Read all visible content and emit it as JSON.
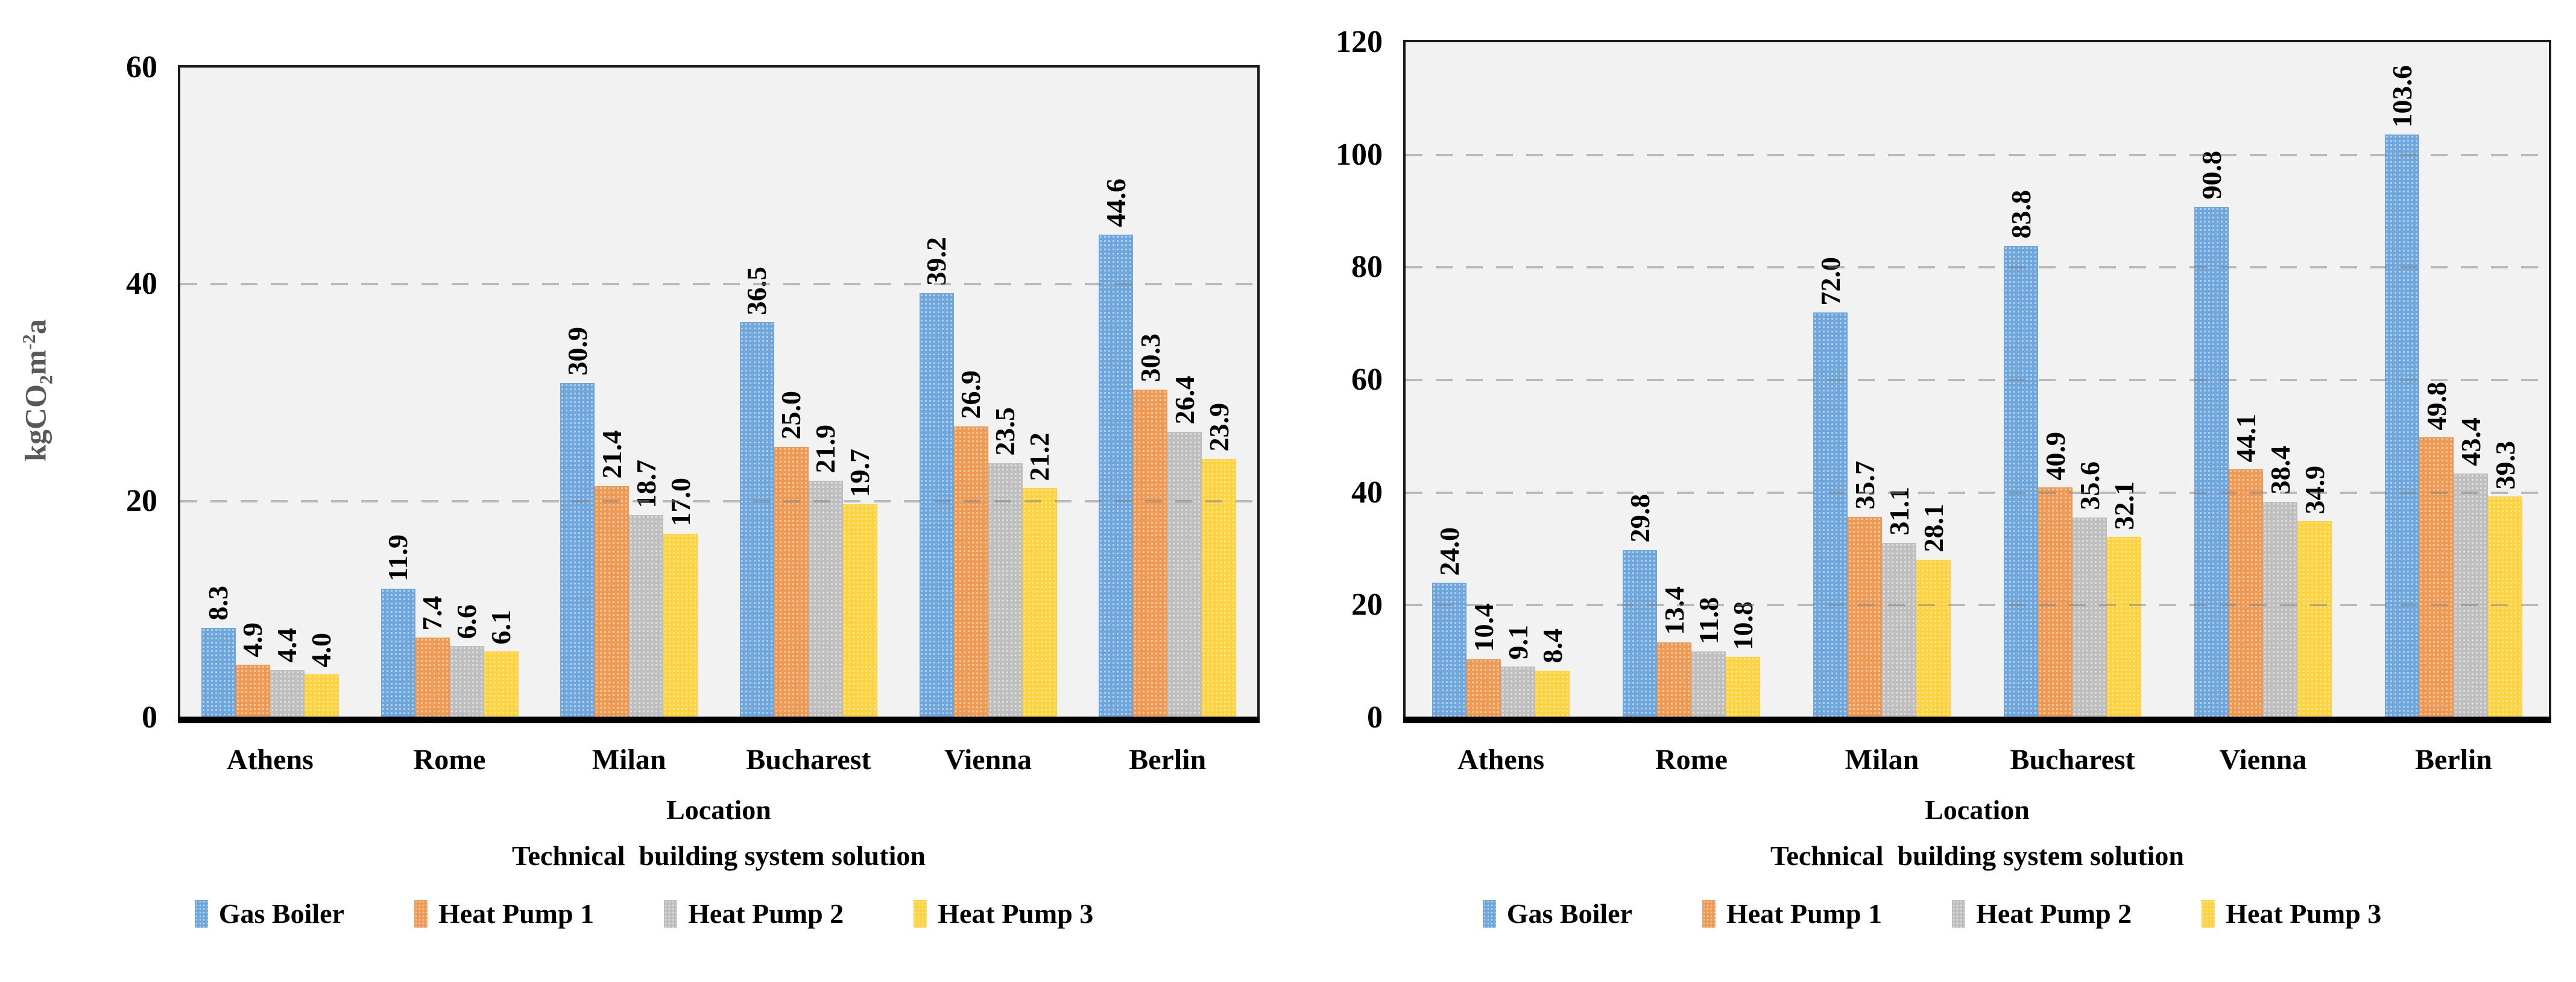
{
  "figure": {
    "background": "#FFFFFF",
    "plot_background": "#F2F2F2",
    "grid_color": "#BFBFBF",
    "axis_color": "#000000",
    "y_axis_title_color": "#595959"
  },
  "chart_data": [
    {
      "type": "bar",
      "panel": "left",
      "title": "",
      "ylabel_parts": {
        "pre": "kgCO",
        "sub": "2",
        "mid": "m",
        "sup": "-2",
        "post": "a"
      },
      "xlabel_line1": "Location",
      "xlabel_line2": "Technical  building system solution",
      "categories": [
        "Athens",
        "Rome",
        "Milan",
        "Bucharest",
        "Vienna",
        "Berlin"
      ],
      "ylim": [
        0,
        60
      ],
      "yticks": [
        0,
        20,
        40,
        60
      ],
      "grid": true,
      "legend_position": "bottom",
      "series": [
        {
          "name": "Gas Boiler",
          "color": "#6FA7DC",
          "values": [
            8.3,
            11.9,
            30.9,
            36.5,
            39.2,
            44.6
          ]
        },
        {
          "name": "Heat Pump 1",
          "color": "#EE9A54",
          "values": [
            4.9,
            7.4,
            21.4,
            25.0,
            26.9,
            30.3
          ]
        },
        {
          "name": "Heat Pump 2",
          "color": "#BFBFBF",
          "values": [
            4.4,
            6.6,
            18.7,
            21.9,
            23.5,
            26.4
          ]
        },
        {
          "name": "Heat Pump 3",
          "color": "#FFD23F",
          "values": [
            4.0,
            6.1,
            17.0,
            19.7,
            21.2,
            23.9
          ]
        }
      ]
    },
    {
      "type": "bar",
      "panel": "right",
      "title": "",
      "xlabel_line1": "Location",
      "xlabel_line2": "Technical  building system solution",
      "categories": [
        "Athens",
        "Rome",
        "Milan",
        "Bucharest",
        "Vienna",
        "Berlin"
      ],
      "ylim": [
        0,
        120
      ],
      "yticks": [
        0,
        20,
        40,
        60,
        80,
        100,
        120
      ],
      "grid": true,
      "legend_position": "bottom",
      "series": [
        {
          "name": "Gas Boiler",
          "color": "#6FA7DC",
          "values": [
            24.0,
            29.8,
            72.0,
            83.8,
            90.8,
            103.6
          ]
        },
        {
          "name": "Heat Pump 1",
          "color": "#EE9A54",
          "values": [
            10.4,
            13.4,
            35.7,
            40.9,
            44.1,
            49.8
          ]
        },
        {
          "name": "Heat Pump 2",
          "color": "#BFBFBF",
          "values": [
            9.1,
            11.8,
            31.1,
            35.6,
            38.4,
            43.4
          ]
        },
        {
          "name": "Heat Pump 3",
          "color": "#FFD23F",
          "values": [
            8.4,
            10.8,
            28.1,
            32.1,
            34.9,
            39.3
          ]
        }
      ]
    }
  ]
}
